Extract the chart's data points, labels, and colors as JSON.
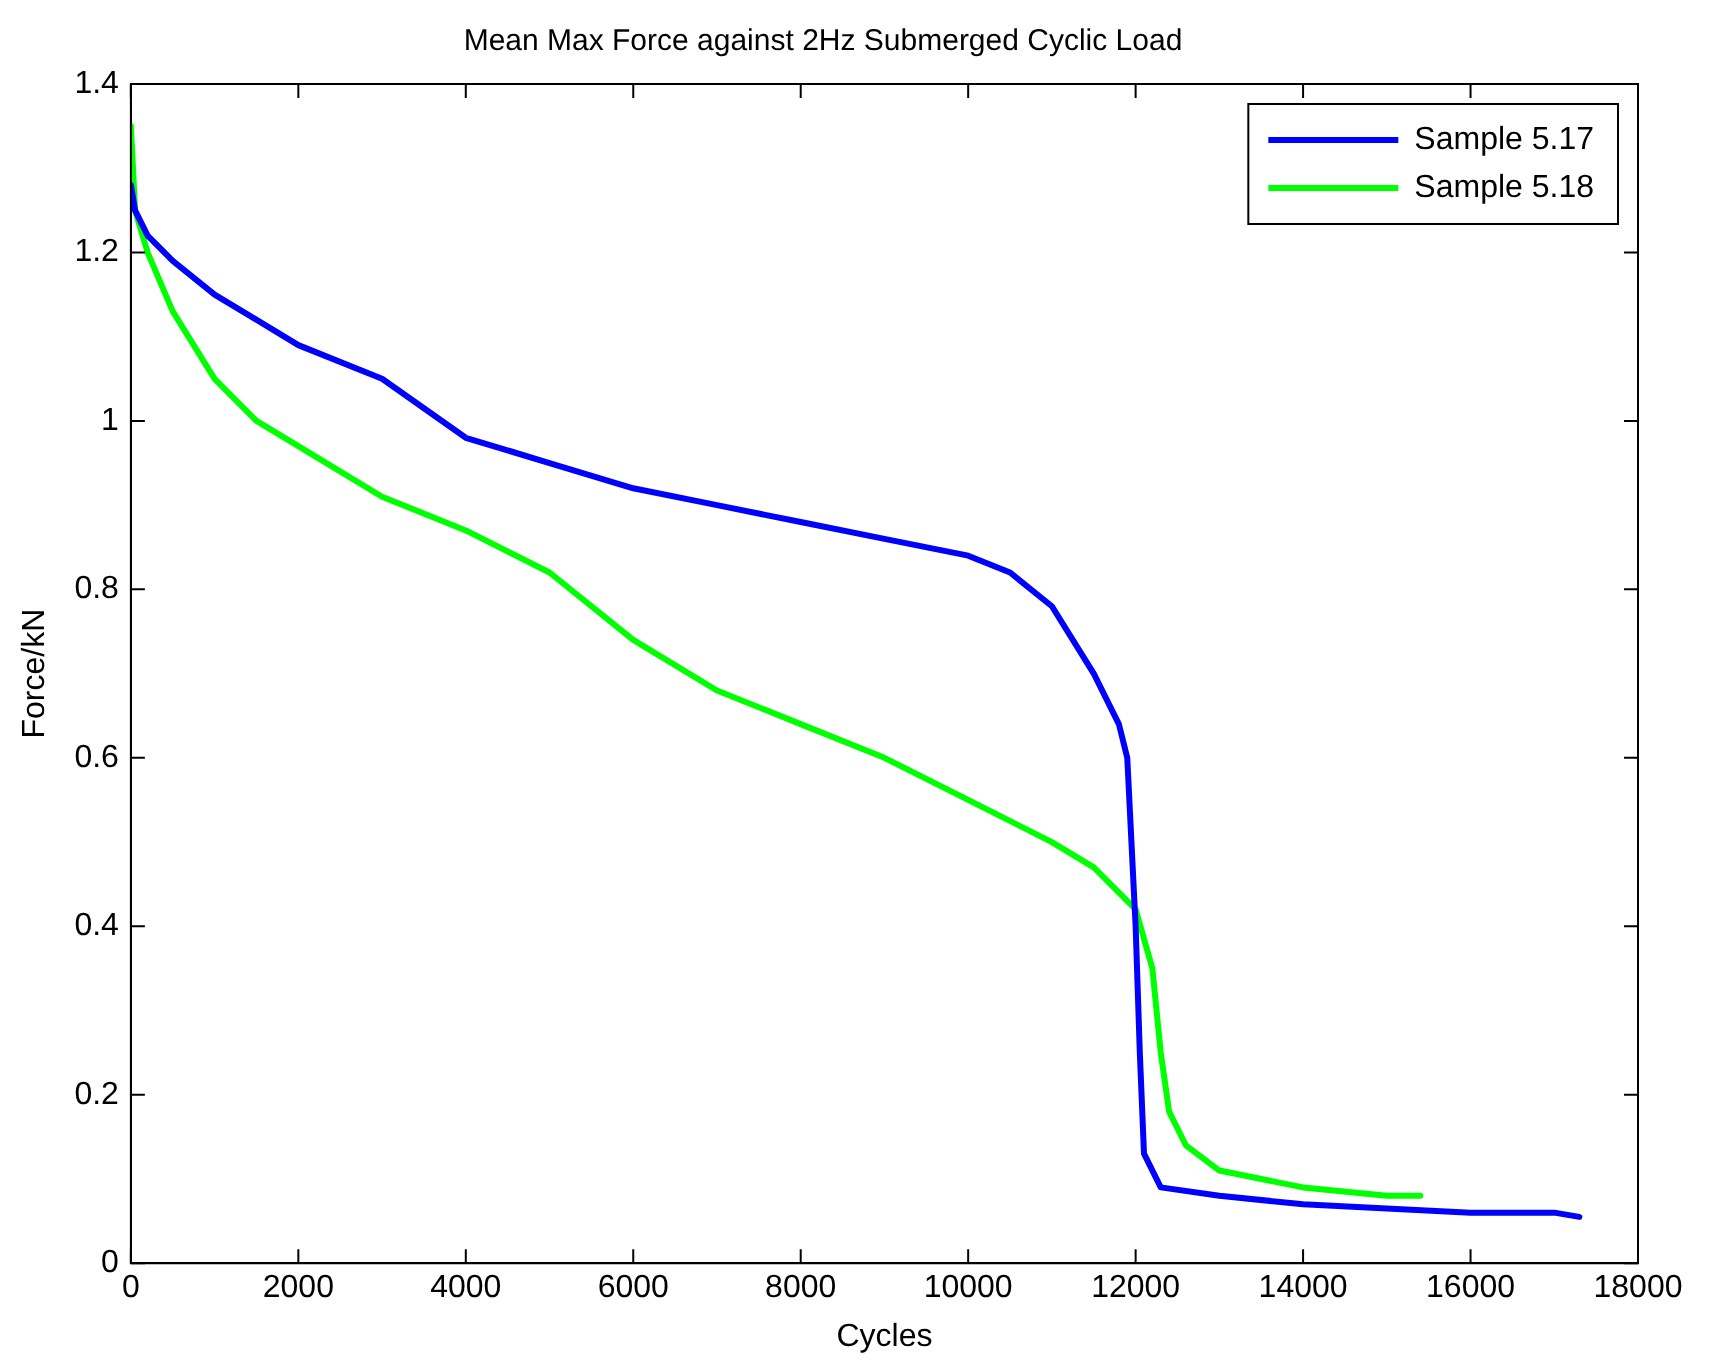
{
  "chart_data": {
    "type": "line",
    "title": "Mean Max Force against 2Hz Submerged Cyclic Load",
    "xlabel": "Cycles",
    "ylabel": "Force/kN",
    "xlim": [
      0,
      18000
    ],
    "xticks": [
      0,
      2000,
      4000,
      6000,
      8000,
      10000,
      12000,
      14000,
      16000,
      18000
    ],
    "ylim": [
      0,
      1.4
    ],
    "yticks": [
      0,
      0.2,
      0.4,
      0.6,
      0.8,
      1,
      1.2,
      1.4
    ],
    "grid": false,
    "legend": "top right",
    "marker": "none",
    "line_style": "solid",
    "series": [
      {
        "name": "Sample 5.17",
        "color": "#0000ff",
        "x": [
          0,
          50,
          200,
          500,
          1000,
          2000,
          3000,
          4000,
          5000,
          6000,
          7000,
          8000,
          9000,
          10000,
          10500,
          11000,
          11500,
          11800,
          11900,
          12000,
          12050,
          12100,
          12300,
          13000,
          14000,
          15000,
          16000,
          17000,
          17300
        ],
        "values": [
          1.28,
          1.25,
          1.22,
          1.19,
          1.15,
          1.09,
          1.05,
          0.98,
          0.95,
          0.92,
          0.9,
          0.88,
          0.86,
          0.84,
          0.82,
          0.78,
          0.7,
          0.64,
          0.6,
          0.4,
          0.25,
          0.13,
          0.09,
          0.08,
          0.07,
          0.065,
          0.06,
          0.06,
          0.055
        ]
      },
      {
        "name": "Sample 5.18",
        "color": "#00ff00",
        "x": [
          0,
          50,
          200,
          500,
          1000,
          1500,
          2000,
          3000,
          4000,
          5000,
          6000,
          7000,
          8000,
          9000,
          10000,
          11000,
          11500,
          12000,
          12200,
          12300,
          12400,
          12600,
          13000,
          14000,
          15000,
          15400
        ],
        "values": [
          1.35,
          1.25,
          1.2,
          1.13,
          1.05,
          1.0,
          0.97,
          0.91,
          0.87,
          0.82,
          0.74,
          0.68,
          0.64,
          0.6,
          0.55,
          0.5,
          0.47,
          0.42,
          0.35,
          0.25,
          0.18,
          0.14,
          0.11,
          0.09,
          0.08,
          0.08
        ]
      }
    ]
  }
}
